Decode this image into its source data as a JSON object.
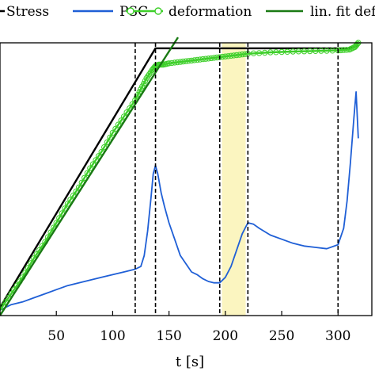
{
  "chart_data": {
    "type": "line",
    "xlabel": "t [s]",
    "ylabel": "",
    "title": "",
    "xlim": [
      0,
      330
    ],
    "ylim": [
      0,
      1.0
    ],
    "x_ticks": [
      50,
      100,
      150,
      200,
      250,
      300
    ],
    "x_tick_labels": [
      "50",
      "100",
      "150",
      "200",
      "250",
      "300"
    ],
    "grid": false,
    "legend_position": "top",
    "vertical_lines": [
      120,
      138,
      195,
      220,
      300
    ],
    "highlight_band": {
      "x": [
        197,
        218
      ],
      "color": "#fbf5c0"
    },
    "series": [
      {
        "name": "Stress",
        "color": "#000000",
        "marker": "none",
        "x": [
          0,
          138,
          310,
          318
        ],
        "y": [
          0.03,
          0.98,
          0.98,
          0.99
        ]
      },
      {
        "name": "PSC",
        "color": "#1f5fd6",
        "marker": "none",
        "x": [
          0,
          10,
          20,
          30,
          40,
          50,
          60,
          70,
          80,
          90,
          100,
          110,
          120,
          125,
          128,
          131,
          134,
          136,
          138,
          140,
          143,
          146,
          150,
          155,
          160,
          165,
          170,
          175,
          180,
          185,
          190,
          195,
          200,
          205,
          210,
          215,
          220,
          225,
          230,
          240,
          250,
          260,
          270,
          280,
          290,
          300,
          305,
          308,
          311,
          314,
          316,
          318
        ],
        "y": [
          0.02,
          0.04,
          0.05,
          0.065,
          0.08,
          0.095,
          0.11,
          0.12,
          0.13,
          0.14,
          0.15,
          0.16,
          0.17,
          0.18,
          0.22,
          0.31,
          0.43,
          0.52,
          0.55,
          0.52,
          0.45,
          0.4,
          0.34,
          0.28,
          0.22,
          0.19,
          0.16,
          0.15,
          0.135,
          0.125,
          0.12,
          0.12,
          0.14,
          0.18,
          0.24,
          0.3,
          0.34,
          0.335,
          0.32,
          0.295,
          0.28,
          0.265,
          0.255,
          0.25,
          0.245,
          0.26,
          0.32,
          0.42,
          0.56,
          0.72,
          0.82,
          0.65
        ]
      },
      {
        "name": "deformation",
        "color": "#3ecf2a",
        "marker": "circle",
        "x": [
          0,
          10,
          20,
          30,
          40,
          50,
          60,
          70,
          80,
          90,
          100,
          110,
          120,
          125,
          130,
          135,
          138,
          141,
          145,
          150,
          160,
          170,
          180,
          190,
          200,
          210,
          220,
          240,
          260,
          280,
          300,
          310,
          315,
          318
        ],
        "y": [
          0.02,
          0.08,
          0.14,
          0.21,
          0.27,
          0.34,
          0.41,
          0.47,
          0.54,
          0.6,
          0.67,
          0.73,
          0.79,
          0.83,
          0.87,
          0.9,
          0.915,
          0.92,
          0.92,
          0.925,
          0.93,
          0.935,
          0.94,
          0.945,
          0.95,
          0.955,
          0.96,
          0.965,
          0.968,
          0.97,
          0.972,
          0.975,
          0.985,
          1.0
        ]
      },
      {
        "name": "lin. fit defo",
        "color": "#1a7a14",
        "marker": "none",
        "x": [
          0,
          158
        ],
        "y": [
          0.0,
          1.02
        ]
      }
    ]
  }
}
